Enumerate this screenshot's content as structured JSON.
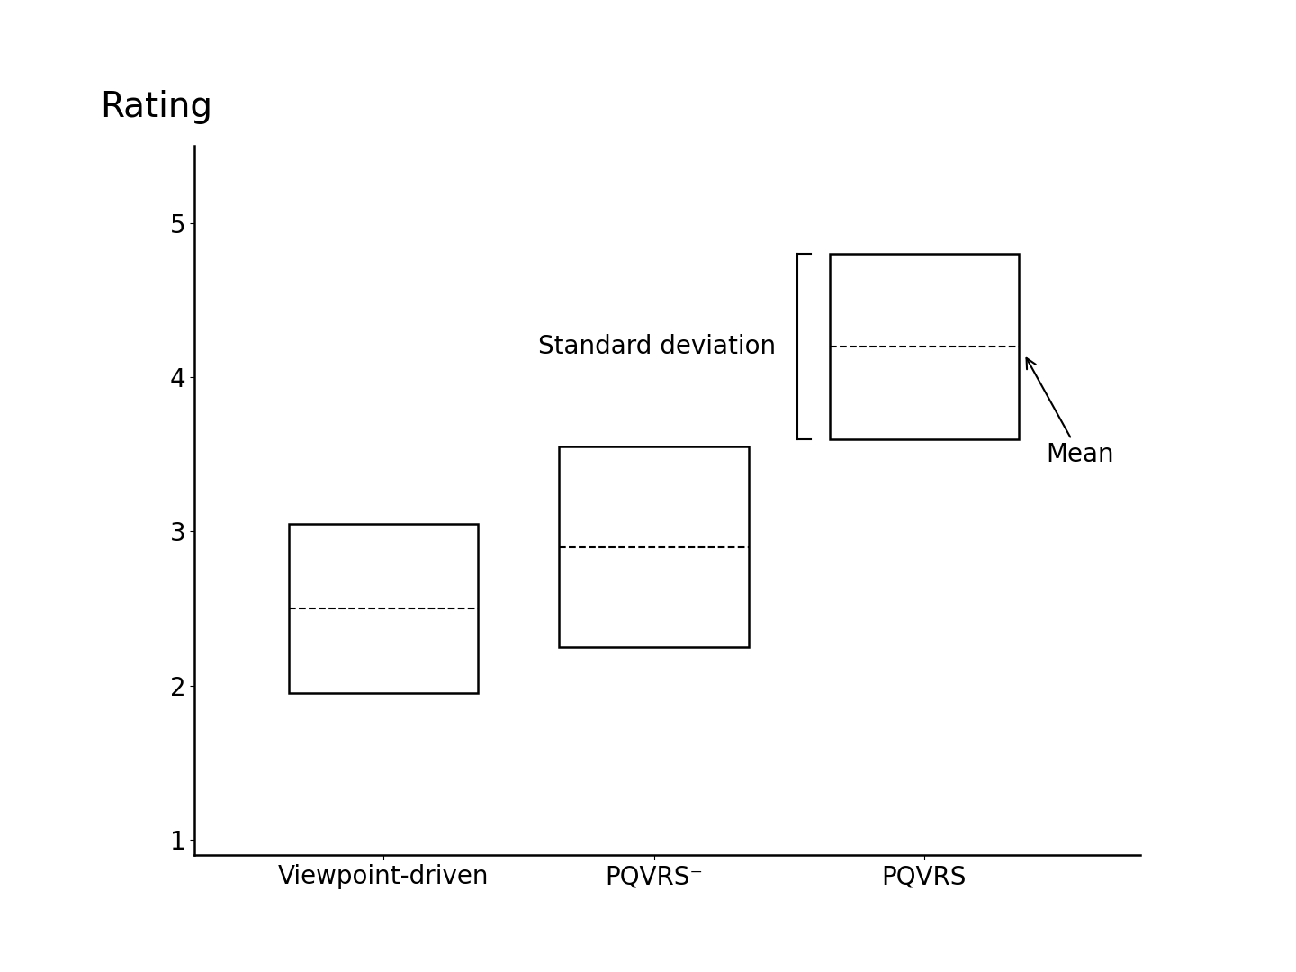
{
  "chart_data": {
    "type": "bar",
    "y_label": "Rating",
    "categories": [
      "Viewpoint-driven",
      "PQVRS⁻",
      "PQVRS"
    ],
    "values": [
      2.5,
      2.9,
      4.2
    ],
    "std_dev": [
      0.55,
      0.65,
      0.6
    ],
    "color": "#ffffff",
    "ylim": [
      0.9,
      5.5
    ],
    "yticks": [
      1,
      2,
      3,
      4,
      5
    ],
    "grid": false,
    "annotations": [
      "Standard deviation",
      "Mean"
    ]
  }
}
